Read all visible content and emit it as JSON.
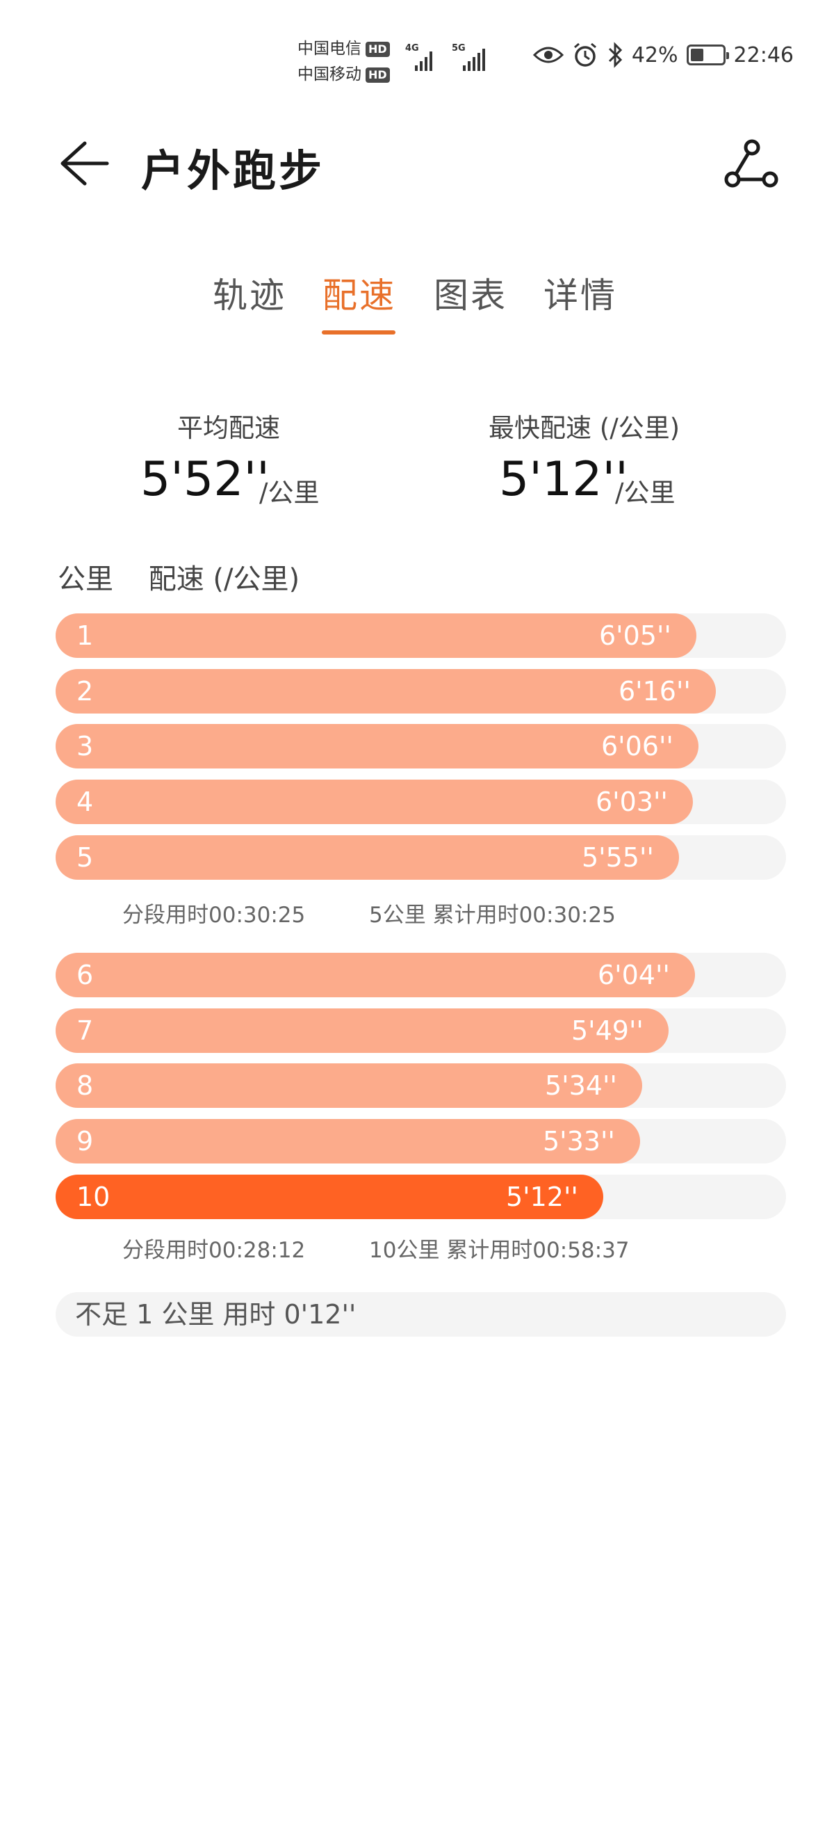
{
  "status_bar": {
    "carrier1": "中国电信",
    "carrier2": "中国移动",
    "hd": "HD",
    "net1": "4G",
    "net2": "5G",
    "battery_pct": "42%",
    "battery_level": 0.42,
    "time": "22:46"
  },
  "header": {
    "title": "户外跑步"
  },
  "tabs": [
    {
      "label": "轨迹",
      "active": false
    },
    {
      "label": "配速",
      "active": true
    },
    {
      "label": "图表",
      "active": false
    },
    {
      "label": "详情",
      "active": false
    }
  ],
  "summary": {
    "avg_label": "平均配速",
    "avg_value": "5'52''",
    "avg_unit": "/公里",
    "fast_label": "最快配速 (/公里)",
    "fast_value": "5'12''",
    "fast_unit": "/公里"
  },
  "table": {
    "km_header": "公里",
    "pace_header": "配速 (/公里)"
  },
  "splits": [
    {
      "km": "1",
      "pace": "6'05''",
      "seconds": 365
    },
    {
      "km": "2",
      "pace": "6'16''",
      "seconds": 376
    },
    {
      "km": "3",
      "pace": "6'06''",
      "seconds": 366
    },
    {
      "km": "4",
      "pace": "6'03''",
      "seconds": 363
    },
    {
      "km": "5",
      "pace": "5'55''",
      "seconds": 355
    },
    {
      "km": "6",
      "pace": "6'04''",
      "seconds": 364
    },
    {
      "km": "7",
      "pace": "5'49''",
      "seconds": 349
    },
    {
      "km": "8",
      "pace": "5'34''",
      "seconds": 334
    },
    {
      "km": "9",
      "pace": "5'33''",
      "seconds": 333
    },
    {
      "km": "10",
      "pace": "5'12''",
      "seconds": 312,
      "fastest": true
    }
  ],
  "segments": [
    {
      "split_time": "分段用时00:30:25",
      "cumulative": "5公里 累计用时00:30:25"
    },
    {
      "split_time": "分段用时00:28:12",
      "cumulative": "10公里 累计用时00:58:37"
    }
  ],
  "remainder": "不足 1 公里 用时 0'12''",
  "colors": {
    "accent": "#e8702a",
    "bar": "#fcab8b",
    "bar_fastest": "#ff6223",
    "track": "#f4f4f4"
  }
}
